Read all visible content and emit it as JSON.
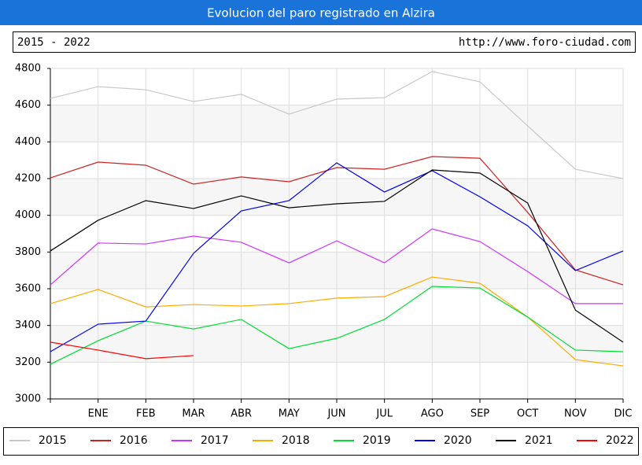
{
  "chart_data": {
    "type": "line",
    "title": "Evolucion del paro registrado en Alzira",
    "subtitle": "2015 - 2022",
    "url": "http://www.foro-ciudad.com",
    "categories": [
      null,
      "ENE",
      "FEB",
      "MAR",
      "ABR",
      "MAY",
      "JUN",
      "JUL",
      "AGO",
      "SEP",
      "OCT",
      "NOV",
      "DIC"
    ],
    "ylim": [
      3000,
      4800
    ],
    "yticks": [
      3000,
      3200,
      3400,
      3600,
      3800,
      4000,
      4200,
      4400,
      4600,
      4800
    ],
    "grid": true,
    "legend": "bottom",
    "series": [
      {
        "name": "2015",
        "color": "#c8c8c8",
        "values": [
          4637,
          4701,
          4684,
          4620,
          4659,
          4551,
          4633,
          4641,
          4783,
          4727,
          4487,
          4251,
          4200
        ]
      },
      {
        "name": "2016",
        "color": "#cc2222",
        "values": [
          4204,
          4290,
          4273,
          4170,
          4209,
          4183,
          4260,
          4251,
          4320,
          4311,
          4016,
          3703,
          3621
        ]
      },
      {
        "name": "2017",
        "color": "#cc33ff",
        "values": [
          3621,
          3849,
          3844,
          3887,
          3853,
          3741,
          3861,
          3741,
          3926,
          3857,
          3694,
          3519,
          3519
        ]
      },
      {
        "name": "2018",
        "color": "#ffaa00",
        "values": [
          3519,
          3596,
          3501,
          3514,
          3506,
          3519,
          3549,
          3557,
          3664,
          3630,
          3446,
          3214,
          3180
        ]
      },
      {
        "name": "2019",
        "color": "#00dd33",
        "values": [
          3189,
          3317,
          3424,
          3381,
          3433,
          3274,
          3330,
          3433,
          3613,
          3604,
          3446,
          3266,
          3257
        ]
      },
      {
        "name": "2020",
        "color": "#0000ee",
        "values": [
          3257,
          3407,
          3424,
          3793,
          4024,
          4080,
          4286,
          4127,
          4243,
          4101,
          3943,
          3699,
          3806
        ]
      },
      {
        "name": "2021",
        "color": "#000000",
        "values": [
          3806,
          3973,
          4080,
          4037,
          4106,
          4041,
          4063,
          4076,
          4247,
          4230,
          4067,
          3484,
          3309
        ]
      },
      {
        "name": "2022",
        "color": "#ff0000",
        "values": [
          3309,
          3266,
          3219,
          3236,
          null,
          null,
          null,
          null,
          null,
          null,
          null,
          null,
          null
        ]
      }
    ]
  }
}
